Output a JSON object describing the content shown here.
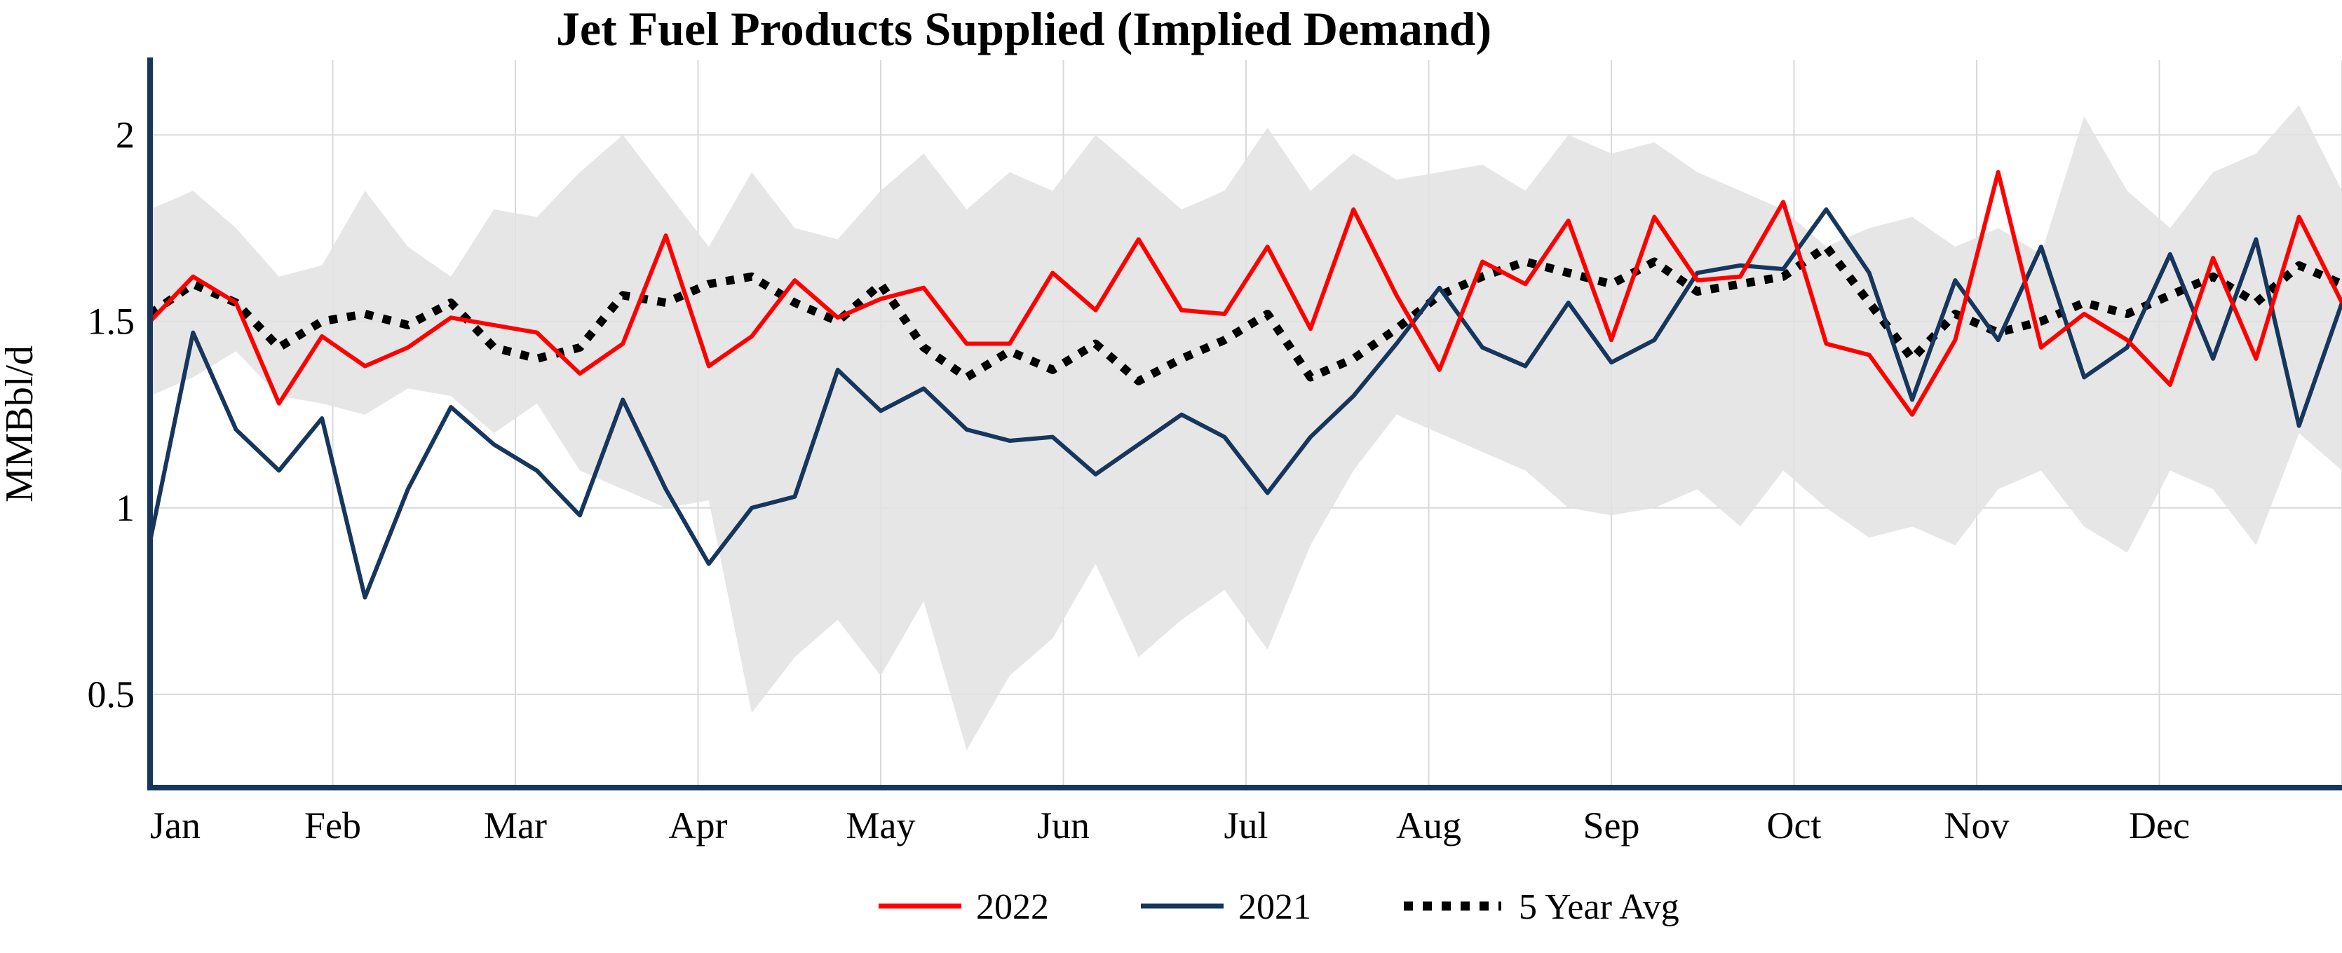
{
  "chart_data": {
    "type": "line",
    "title": "Jet Fuel Products Supplied (Implied Demand)",
    "xlabel": "",
    "ylabel": "MMBbl/d",
    "grid": true,
    "legend_position": "bottom",
    "axis_color": "#17365d",
    "x_axis": {
      "unit": "weeks",
      "points": 52,
      "months": [
        "Jan",
        "Feb",
        "Mar",
        "Apr",
        "May",
        "Jun",
        "Jul",
        "Aug",
        "Sep",
        "Oct",
        "Nov",
        "Dec"
      ]
    },
    "y_axis": {
      "range": [
        0.25,
        2.2
      ],
      "ticks": [
        0.5,
        1,
        1.5,
        2
      ],
      "tick_labels": [
        "0.5",
        "1",
        "1.5",
        "2"
      ]
    },
    "band": {
      "name": "5 Year Range",
      "color": "#e2e2e2",
      "opacity": 0.85,
      "upper": [
        1.8,
        1.85,
        1.75,
        1.62,
        1.65,
        1.85,
        1.7,
        1.62,
        1.8,
        1.78,
        1.9,
        2.0,
        1.85,
        1.7,
        1.9,
        1.75,
        1.72,
        1.85,
        1.95,
        1.8,
        1.9,
        1.85,
        2.0,
        1.9,
        1.8,
        1.85,
        2.02,
        1.85,
        1.95,
        1.88,
        1.9,
        1.92,
        1.85,
        2.0,
        1.95,
        1.98,
        1.9,
        1.85,
        1.8,
        1.7,
        1.75,
        1.78,
        1.7,
        1.75,
        1.68,
        2.05,
        1.85,
        1.75,
        1.9,
        1.95,
        2.08,
        1.85
      ],
      "lower": [
        1.3,
        1.35,
        1.42,
        1.3,
        1.28,
        1.25,
        1.32,
        1.3,
        1.2,
        1.28,
        1.1,
        1.05,
        1.0,
        1.02,
        0.45,
        0.6,
        0.7,
        0.55,
        0.75,
        0.35,
        0.55,
        0.65,
        0.85,
        0.6,
        0.7,
        0.78,
        0.62,
        0.9,
        1.1,
        1.25,
        1.2,
        1.15,
        1.1,
        1.0,
        0.98,
        1.0,
        1.05,
        0.95,
        1.1,
        1.0,
        0.92,
        0.95,
        0.9,
        1.05,
        1.1,
        0.95,
        0.88,
        1.1,
        1.05,
        0.9,
        1.2,
        1.1
      ]
    },
    "series": [
      {
        "name": "2022",
        "color": "#fe0000",
        "style": "solid",
        "values": [
          1.5,
          1.62,
          1.55,
          1.28,
          1.46,
          1.38,
          1.43,
          1.51,
          1.49,
          1.47,
          1.36,
          1.44,
          1.73,
          1.38,
          1.46,
          1.61,
          1.51,
          1.56,
          1.59,
          1.44,
          1.44,
          1.63,
          1.53,
          1.72,
          1.53,
          1.52,
          1.7,
          1.48,
          1.8,
          1.57,
          1.37,
          1.66,
          1.6,
          1.77,
          1.45,
          1.78,
          1.61,
          1.62,
          1.82,
          1.44,
          1.41,
          1.25,
          1.45,
          1.9,
          1.43,
          1.52,
          1.45,
          1.33,
          1.67,
          1.4,
          1.78,
          1.55
        ]
      },
      {
        "name": "2021",
        "color": "#17365d",
        "style": "solid",
        "values": [
          0.91,
          1.47,
          1.21,
          1.1,
          1.24,
          0.76,
          1.05,
          1.27,
          1.17,
          1.1,
          0.98,
          1.29,
          1.05,
          0.85,
          1.0,
          1.03,
          1.37,
          1.26,
          1.32,
          1.21,
          1.18,
          1.19,
          1.09,
          1.17,
          1.25,
          1.19,
          1.04,
          1.19,
          1.3,
          1.44,
          1.59,
          1.43,
          1.38,
          1.55,
          1.39,
          1.45,
          1.63,
          1.65,
          1.64,
          1.8,
          1.63,
          1.29,
          1.61,
          1.45,
          1.7,
          1.35,
          1.43,
          1.68,
          1.4,
          1.72,
          1.22,
          1.55
        ]
      },
      {
        "name": "5 Year Avg",
        "color": "#000000",
        "style": "dotted",
        "values": [
          1.52,
          1.6,
          1.55,
          1.43,
          1.5,
          1.52,
          1.49,
          1.55,
          1.43,
          1.4,
          1.43,
          1.57,
          1.55,
          1.6,
          1.62,
          1.55,
          1.5,
          1.6,
          1.43,
          1.35,
          1.42,
          1.37,
          1.44,
          1.34,
          1.4,
          1.45,
          1.52,
          1.35,
          1.4,
          1.48,
          1.57,
          1.62,
          1.66,
          1.63,
          1.6,
          1.66,
          1.58,
          1.6,
          1.62,
          1.7,
          1.55,
          1.4,
          1.52,
          1.47,
          1.5,
          1.55,
          1.52,
          1.57,
          1.62,
          1.55,
          1.65,
          1.6
        ]
      }
    ]
  }
}
